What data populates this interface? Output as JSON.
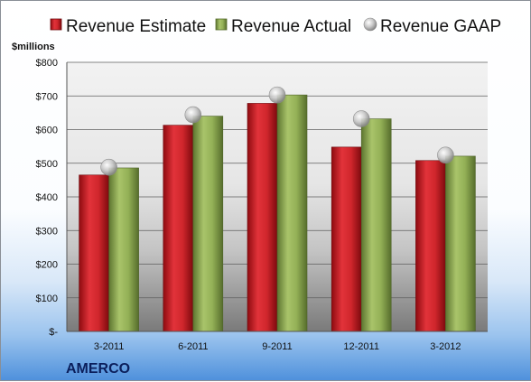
{
  "chart_data": {
    "type": "bar",
    "title": "",
    "unit_label": "$millions",
    "company": "AMERCO",
    "categories": [
      "3-2011",
      "6-2011",
      "9-2011",
      "12-2011",
      "3-2012"
    ],
    "series": [
      {
        "name": "Revenue Estimate",
        "kind": "bar",
        "color": "#c0181e",
        "values": [
          465,
          613,
          678,
          548,
          508
        ]
      },
      {
        "name": "Revenue Actual",
        "kind": "bar",
        "color": "#8aa64f",
        "values": [
          486,
          640,
          703,
          632,
          521
        ]
      },
      {
        "name": "Revenue GAAP",
        "kind": "marker",
        "color": "#b8b8b8",
        "values": [
          488,
          644,
          703,
          632,
          524
        ]
      }
    ],
    "ylim": [
      0,
      800
    ],
    "yticks": [
      0,
      100,
      200,
      300,
      400,
      500,
      600,
      700,
      800
    ],
    "ytick_labels": [
      "$-",
      "$100",
      "$200",
      "$300",
      "$400",
      "$500",
      "$600",
      "$700",
      "$800"
    ],
    "grid": true,
    "legend_position": "top"
  }
}
